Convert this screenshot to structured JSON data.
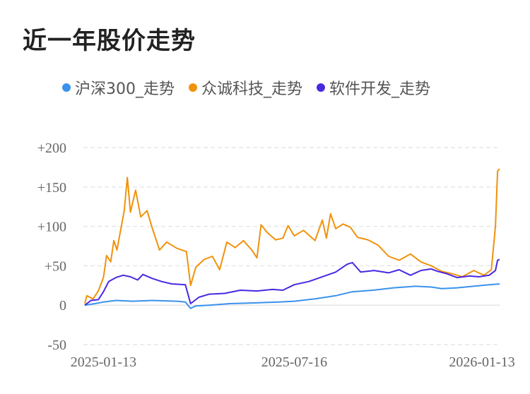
{
  "title": "近一年股价走势",
  "colors": {
    "hs300": "#3a92ec",
    "zhongcheng": "#f0920c",
    "software": "#4a28e0",
    "grid": "#e6e6e6",
    "text": "#666666"
  },
  "chart_data": {
    "type": "line",
    "title": "近一年股价走势",
    "xlabel": "",
    "ylabel": "",
    "legend_position": "top",
    "grid": true,
    "x_ticks": [
      "2025-01-13",
      "2025-07-16",
      "2026-01-13"
    ],
    "x_start": "2024-12-26",
    "x_end": "2026-01-30",
    "y_ticks": [
      "+200",
      "+150",
      "+100",
      "+50",
      "0",
      "-50"
    ],
    "y_tick_values": [
      200,
      150,
      100,
      50,
      0,
      -50
    ],
    "ylim": [
      -50,
      200
    ],
    "series": [
      {
        "name": "沪深300_走势",
        "color": "#3a92ec",
        "points": [
          [
            "2024-12-26",
            0
          ],
          [
            "2025-01-05",
            2
          ],
          [
            "2025-01-13",
            4
          ],
          [
            "2025-01-25",
            6
          ],
          [
            "2025-02-10",
            5
          ],
          [
            "2025-03-01",
            6
          ],
          [
            "2025-03-25",
            5
          ],
          [
            "2025-04-02",
            4
          ],
          [
            "2025-04-07",
            -4
          ],
          [
            "2025-04-12",
            -1
          ],
          [
            "2025-04-25",
            0
          ],
          [
            "2025-05-15",
            2
          ],
          [
            "2025-06-10",
            3
          ],
          [
            "2025-07-01",
            4
          ],
          [
            "2025-07-16",
            5
          ],
          [
            "2025-08-05",
            8
          ],
          [
            "2025-08-25",
            12
          ],
          [
            "2025-09-10",
            17
          ],
          [
            "2025-09-30",
            19
          ],
          [
            "2025-10-20",
            22
          ],
          [
            "2025-11-10",
            24
          ],
          [
            "2025-11-25",
            23
          ],
          [
            "2025-12-05",
            21
          ],
          [
            "2025-12-20",
            22
          ],
          [
            "2026-01-05",
            24
          ],
          [
            "2026-01-20",
            26
          ],
          [
            "2026-01-30",
            27
          ]
        ]
      },
      {
        "name": "众诚科技_走势",
        "color": "#f0920c",
        "points": [
          [
            "2024-12-26",
            2
          ],
          [
            "2024-12-28",
            12
          ],
          [
            "2025-01-03",
            8
          ],
          [
            "2025-01-08",
            18
          ],
          [
            "2025-01-13",
            35
          ],
          [
            "2025-01-16",
            63
          ],
          [
            "2025-01-20",
            55
          ],
          [
            "2025-01-23",
            82
          ],
          [
            "2025-01-26",
            70
          ],
          [
            "2025-02-02",
            120
          ],
          [
            "2025-02-05",
            162
          ],
          [
            "2025-02-08",
            118
          ],
          [
            "2025-02-13",
            146
          ],
          [
            "2025-02-18",
            112
          ],
          [
            "2025-02-24",
            120
          ],
          [
            "2025-03-01",
            98
          ],
          [
            "2025-03-08",
            70
          ],
          [
            "2025-03-15",
            80
          ],
          [
            "2025-03-25",
            72
          ],
          [
            "2025-04-03",
            68
          ],
          [
            "2025-04-07",
            25
          ],
          [
            "2025-04-12",
            48
          ],
          [
            "2025-04-20",
            58
          ],
          [
            "2025-04-28",
            62
          ],
          [
            "2025-05-05",
            45
          ],
          [
            "2025-05-12",
            80
          ],
          [
            "2025-05-20",
            73
          ],
          [
            "2025-05-28",
            82
          ],
          [
            "2025-06-05",
            70
          ],
          [
            "2025-06-10",
            60
          ],
          [
            "2025-06-14",
            102
          ],
          [
            "2025-06-20",
            92
          ],
          [
            "2025-06-28",
            83
          ],
          [
            "2025-07-05",
            85
          ],
          [
            "2025-07-10",
            101
          ],
          [
            "2025-07-16",
            88
          ],
          [
            "2025-07-25",
            95
          ],
          [
            "2025-08-05",
            82
          ],
          [
            "2025-08-12",
            108
          ],
          [
            "2025-08-16",
            85
          ],
          [
            "2025-08-20",
            116
          ],
          [
            "2025-08-25",
            97
          ],
          [
            "2025-09-01",
            103
          ],
          [
            "2025-09-08",
            99
          ],
          [
            "2025-09-15",
            86
          ],
          [
            "2025-09-25",
            83
          ],
          [
            "2025-10-05",
            76
          ],
          [
            "2025-10-15",
            62
          ],
          [
            "2025-10-25",
            57
          ],
          [
            "2025-11-05",
            65
          ],
          [
            "2025-11-15",
            55
          ],
          [
            "2025-11-25",
            50
          ],
          [
            "2025-12-05",
            43
          ],
          [
            "2025-12-15",
            40
          ],
          [
            "2025-12-25",
            36
          ],
          [
            "2026-01-05",
            44
          ],
          [
            "2026-01-15",
            38
          ],
          [
            "2026-01-22",
            45
          ],
          [
            "2026-01-26",
            100
          ],
          [
            "2026-01-28",
            170
          ],
          [
            "2026-01-30",
            173
          ]
        ]
      },
      {
        "name": "软件开发_走势",
        "color": "#4a28e0",
        "points": [
          [
            "2024-12-26",
            0
          ],
          [
            "2025-01-01",
            6
          ],
          [
            "2025-01-08",
            7
          ],
          [
            "2025-01-13",
            17
          ],
          [
            "2025-01-18",
            30
          ],
          [
            "2025-01-25",
            35
          ],
          [
            "2025-02-01",
            38
          ],
          [
            "2025-02-08",
            36
          ],
          [
            "2025-02-15",
            32
          ],
          [
            "2025-02-20",
            39
          ],
          [
            "2025-03-01",
            34
          ],
          [
            "2025-03-10",
            30
          ],
          [
            "2025-03-20",
            27
          ],
          [
            "2025-04-02",
            26
          ],
          [
            "2025-04-07",
            2
          ],
          [
            "2025-04-15",
            10
          ],
          [
            "2025-04-25",
            14
          ],
          [
            "2025-05-10",
            15
          ],
          [
            "2025-05-25",
            19
          ],
          [
            "2025-06-10",
            18
          ],
          [
            "2025-06-25",
            20
          ],
          [
            "2025-07-05",
            19
          ],
          [
            "2025-07-16",
            26
          ],
          [
            "2025-07-30",
            30
          ],
          [
            "2025-08-10",
            35
          ],
          [
            "2025-08-25",
            42
          ],
          [
            "2025-09-05",
            52
          ],
          [
            "2025-09-10",
            54
          ],
          [
            "2025-09-18",
            42
          ],
          [
            "2025-10-01",
            44
          ],
          [
            "2025-10-15",
            41
          ],
          [
            "2025-10-25",
            45
          ],
          [
            "2025-11-05",
            38
          ],
          [
            "2025-11-15",
            44
          ],
          [
            "2025-11-25",
            46
          ],
          [
            "2025-12-01",
            43
          ],
          [
            "2025-12-10",
            40
          ],
          [
            "2025-12-20",
            35
          ],
          [
            "2026-01-01",
            37
          ],
          [
            "2026-01-10",
            36
          ],
          [
            "2026-01-20",
            38
          ],
          [
            "2026-01-26",
            44
          ],
          [
            "2026-01-28",
            57
          ],
          [
            "2026-01-30",
            58
          ]
        ]
      }
    ]
  }
}
